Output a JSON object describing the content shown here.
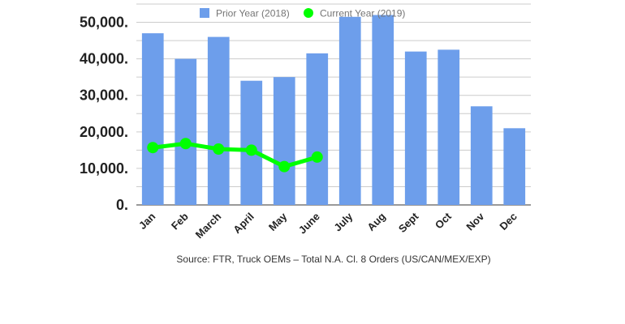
{
  "chart_data": {
    "type": "bar",
    "title": "",
    "xlabel": "",
    "ylabel": "",
    "categories": [
      "Jan",
      "Feb",
      "March",
      "April",
      "May",
      "June",
      "July",
      "Aug",
      "Sept",
      "Oct",
      "Nov",
      "Dec"
    ],
    "ylim": [
      0,
      55000
    ],
    "yticks": [
      0,
      10000,
      20000,
      30000,
      40000,
      50000
    ],
    "ytick_labels": [
      "0.",
      "10,000.",
      "20,000.",
      "30,000.",
      "40,000.",
      "50,000."
    ],
    "grid": true,
    "legend_position": "top",
    "series": [
      {
        "name": "Prior Year (2018)",
        "type": "bar",
        "color": "#6d9eeb",
        "values": [
          47000,
          40000,
          46000,
          34000,
          35000,
          41500,
          51500,
          52000,
          42000,
          42500,
          27000,
          21000
        ]
      },
      {
        "name": "Current Year (2019)",
        "type": "line",
        "color": "#00ff00",
        "values": [
          15700,
          16800,
          15300,
          15000,
          10500,
          13100,
          null,
          null,
          null,
          null,
          null,
          null
        ]
      }
    ]
  },
  "source_text": "Source: FTR, Truck OEMs – Total N.A. Cl. 8 Orders (US/CAN/MEX/EXP)"
}
